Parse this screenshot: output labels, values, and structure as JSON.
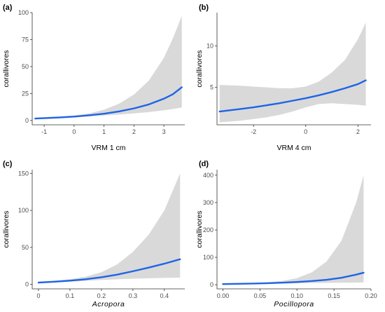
{
  "chart_data": [
    {
      "type": "line",
      "panel": "(a)",
      "xlabel": "VRM 1 cm",
      "xlabel_italic": false,
      "ylabel": "corallivores",
      "xlim": [
        -1.4,
        3.7
      ],
      "ylim": [
        -4,
        100
      ],
      "xticks": [
        -1,
        0,
        1,
        2,
        3
      ],
      "yticks": [
        0,
        25,
        50,
        75,
        100
      ],
      "band": "shaded confidence interval",
      "band_color": "#d9d9d9",
      "line_color": "#1f64e6",
      "series": [
        {
          "x": [
            -1.3,
            -0.5,
            0,
            0.5,
            1,
            1.5,
            2,
            2.5,
            3,
            3.3,
            3.6
          ],
          "y": [
            1.8,
            2.8,
            3.6,
            4.8,
            6.3,
            8.4,
            11.2,
            14.9,
            20.2,
            24.3,
            30.8
          ],
          "lower": [
            1.2,
            2.2,
            2.9,
            3.7,
            4.6,
            5.5,
            6.6,
            7.8,
            9.4,
            10.6,
            12
          ],
          "upper": [
            2.6,
            3.7,
            4.6,
            6.6,
            10,
            15.5,
            24,
            37,
            58,
            76,
            97
          ]
        }
      ]
    },
    {
      "type": "line",
      "panel": "(b)",
      "xlabel": "VRM 4 cm",
      "xlabel_italic": false,
      "ylabel": "corallivores",
      "xlim": [
        -3.4,
        2.5
      ],
      "ylim": [
        0.5,
        14
      ],
      "xticks": [
        -2,
        0,
        2
      ],
      "yticks": [
        5,
        10
      ],
      "band": "shaded confidence interval",
      "band_color": "#d9d9d9",
      "line_color": "#1f64e6",
      "series": [
        {
          "x": [
            -3.3,
            -2.5,
            -2,
            -1.5,
            -1,
            -0.5,
            0,
            0.5,
            1,
            1.5,
            2,
            2.3
          ],
          "y": [
            2.1,
            2.4,
            2.6,
            2.85,
            3.1,
            3.4,
            3.7,
            4.05,
            4.45,
            4.9,
            5.4,
            5.85
          ],
          "lower": [
            0.8,
            1.0,
            1.2,
            1.4,
            1.7,
            2.1,
            2.6,
            3.0,
            3.1,
            3.0,
            2.9,
            2.8
          ],
          "upper": [
            5.3,
            5.2,
            5.1,
            5.0,
            4.9,
            4.9,
            5.1,
            5.7,
            6.8,
            8.3,
            10.8,
            12.8
          ]
        }
      ]
    },
    {
      "type": "line",
      "panel": "(c)",
      "xlabel": "Acropora",
      "xlabel_italic": true,
      "ylabel": "corallivores",
      "xlim": [
        -0.02,
        0.465
      ],
      "ylim": [
        -6,
        155
      ],
      "xticks": [
        0.0,
        0.1,
        0.2,
        0.3,
        0.4
      ],
      "yticks": [
        0,
        50,
        100,
        150
      ],
      "band": "shaded confidence interval",
      "band_color": "#d9d9d9",
      "line_color": "#1f64e6",
      "series": [
        {
          "x": [
            0,
            0.05,
            0.1,
            0.15,
            0.2,
            0.25,
            0.3,
            0.35,
            0.4,
            0.45
          ],
          "y": [
            2.5,
            3.6,
            5.1,
            7.0,
            9.7,
            13.2,
            17.8,
            22.7,
            28.0,
            34.0
          ],
          "lower": [
            1.7,
            2.6,
            3.7,
            4.8,
            5.9,
            6.9,
            7.7,
            8.3,
            8.8,
            9.2
          ],
          "upper": [
            3.8,
            5.0,
            7.0,
            10.5,
            16.5,
            27,
            44,
            67,
            100,
            150
          ]
        }
      ]
    },
    {
      "type": "line",
      "panel": "(d)",
      "xlabel": "Pocillopora",
      "xlabel_italic": true,
      "ylabel": "corallivores",
      "xlim": [
        -0.008,
        0.2
      ],
      "ylim": [
        -15,
        420
      ],
      "xticks": [
        0.0,
        0.05,
        0.1,
        0.15,
        0.2
      ],
      "xtick_labels": [
        "0.00",
        "0.05",
        "0.10",
        "0.15",
        "0.20"
      ],
      "yticks": [
        0,
        100,
        200,
        300,
        400
      ],
      "band": "shaded confidence interval",
      "band_color": "#d9d9d9",
      "line_color": "#1f64e6",
      "series": [
        {
          "x": [
            0,
            0.02,
            0.04,
            0.06,
            0.08,
            0.1,
            0.12,
            0.14,
            0.16,
            0.18,
            0.19
          ],
          "y": [
            2.5,
            3.3,
            4.3,
            5.7,
            7.6,
            10.1,
            13.5,
            18.2,
            25.5,
            37,
            44
          ],
          "lower": [
            1.6,
            2.3,
            3.1,
            3.9,
            4.6,
            5.3,
            6.0,
            6.7,
            7.3,
            7.9,
            8.2
          ],
          "upper": [
            3.6,
            4.6,
            6.2,
            9.0,
            14,
            24,
            45,
            85,
            160,
            300,
            400
          ]
        }
      ]
    }
  ]
}
